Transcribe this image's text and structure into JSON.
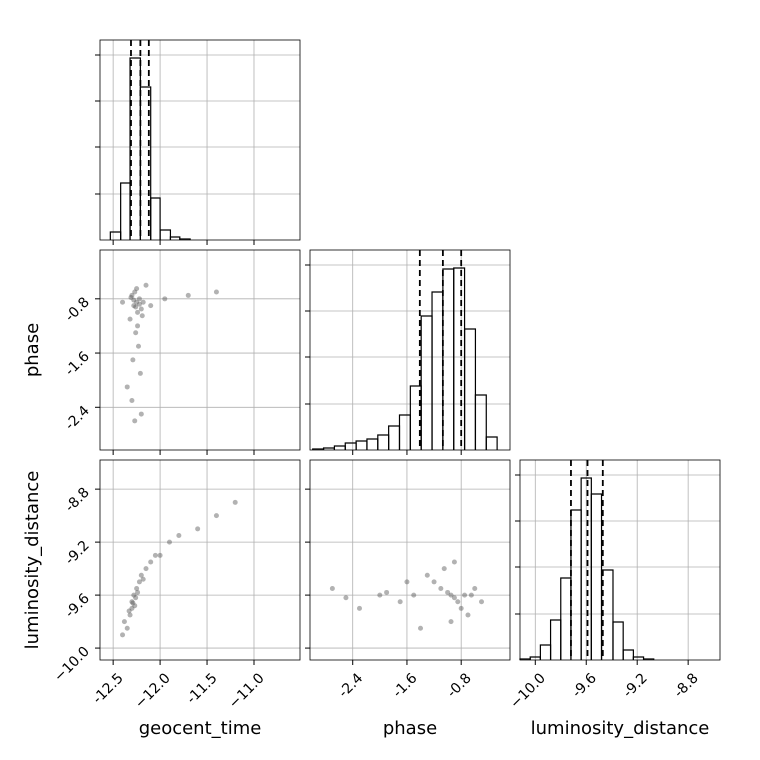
{
  "chart_data": [
    {
      "type": "histogram",
      "xlim": [
        -12.64,
        -10.51
      ],
      "ylim": [
        0,
        200
      ],
      "xticks": [
        -12.5,
        {
          "value": -12,
          "label": "−12.0"
        },
        -11.5,
        {
          "value": -11,
          "label": "−11.0"
        }
      ],
      "yticks": [
        46,
        93,
        139,
        185
      ],
      "bins": [
        -12.53,
        -12.42,
        -12.32,
        -12.21,
        -12.1,
        -12.0,
        -11.89,
        -11.79,
        -11.68
      ],
      "values": [
        8,
        57,
        182,
        153,
        42,
        10,
        3,
        1
      ],
      "quantiles": [
        -12.31,
        -12.21,
        -12.12
      ],
      "grid": true,
      "color": "#000000"
    },
    {
      "type": "scatter",
      "xlim": [
        -12.64,
        -10.51
      ],
      "ylim": [
        -3.03,
        -0.08
      ],
      "xticks": [
        -12.5,
        {
          "value": -12,
          "label": "−12.0"
        },
        -11.5,
        {
          "value": -11,
          "label": "−11.0"
        }
      ],
      "yticks": [
        -2.4,
        -1.6,
        -0.8
      ],
      "ylabel": "phase",
      "grid": true,
      "color": "#555555",
      "x": [
        -12.25,
        -12.22,
        -12.28,
        -12.3,
        -12.2,
        -12.24,
        -12.27,
        -12.18,
        -12.32,
        -12.26,
        -12.23,
        -12.29,
        -12.21,
        -12.35,
        -12.15,
        -12.25,
        -12.3,
        -12.2,
        -12.27,
        -12.24,
        -12.1,
        -11.95,
        -11.7,
        -11.4,
        -12.4,
        -12.22,
        -12.28,
        -12.26,
        -12.19,
        -12.31
      ],
      "y": [
        -0.85,
        -0.8,
        -0.9,
        -0.75,
        -0.95,
        -1.0,
        -0.7,
        -0.85,
        -1.1,
        -1.3,
        -1.5,
        -1.7,
        -1.9,
        -2.1,
        -0.6,
        -0.65,
        -2.3,
        -2.5,
        -2.6,
        -1.2,
        -0.9,
        -0.8,
        -0.75,
        -0.7,
        -0.85,
        -0.88,
        -0.82,
        -0.92,
        -1.05,
        -0.78
      ]
    },
    {
      "type": "histogram",
      "xlim": [
        -3.03,
        -0.08
      ],
      "ylim": [
        0,
        200
      ],
      "xticks": [
        -2.4,
        -1.6,
        -0.8
      ],
      "yticks": [
        46,
        93,
        139,
        185
      ],
      "bins": [
        -2.99,
        -2.83,
        -2.67,
        -2.51,
        -2.35,
        -2.19,
        -2.03,
        -1.87,
        -1.71,
        -1.55,
        -1.39,
        -1.23,
        -1.07,
        -0.91,
        -0.75,
        -0.59,
        -0.43,
        -0.27
      ],
      "values": [
        1,
        2,
        4,
        7,
        9,
        11,
        15,
        24,
        35,
        64,
        134,
        158,
        181,
        182,
        121,
        55,
        13
      ],
      "quantiles": [
        -1.41,
        -1.07,
        -0.8
      ],
      "grid": true,
      "color": "#000000"
    },
    {
      "type": "scatter",
      "xlim": [
        -12.64,
        -10.51
      ],
      "ylim": [
        -10.09,
        -8.58
      ],
      "xticks": [
        -12.5,
        {
          "value": -12,
          "label": "−12.0"
        },
        -11.5,
        {
          "value": -11,
          "label": "−11.0"
        }
      ],
      "yticks": [
        {
          "value": -10,
          "label": "−10.0"
        },
        -9.6,
        -9.2,
        -8.8
      ],
      "xlabel": "geocent_time",
      "ylabel": "luminosity_distance",
      "grid": true,
      "color": "#555555",
      "x": [
        -12.3,
        -12.28,
        -12.25,
        -12.32,
        -12.22,
        -12.35,
        -12.27,
        -12.2,
        -12.15,
        -12.1,
        -12.05,
        -12.0,
        -11.9,
        -11.8,
        -11.6,
        -11.4,
        -11.2,
        -12.4,
        -12.38,
        -12.3,
        -12.26,
        -12.24,
        -12.33,
        -12.18,
        -12.29
      ],
      "y": [
        -9.65,
        -9.6,
        -9.55,
        -9.75,
        -9.5,
        -9.85,
        -9.68,
        -9.45,
        -9.4,
        -9.35,
        -9.3,
        -9.3,
        -9.2,
        -9.15,
        -9.1,
        -9.0,
        -8.9,
        -9.9,
        -9.8,
        -9.7,
        -9.62,
        -9.58,
        -9.72,
        -9.48,
        -9.66
      ]
    },
    {
      "type": "scatter",
      "xlim": [
        -3.03,
        -0.08
      ],
      "ylim": [
        -10.09,
        -8.58
      ],
      "xticks": [
        -2.4,
        -1.6,
        -0.8
      ],
      "yticks": [
        {
          "value": -10,
          "label": "−10.0"
        },
        -9.6,
        -9.2,
        -8.8
      ],
      "xlabel": "phase",
      "grid": true,
      "color": "#555555",
      "x": [
        -0.95,
        -0.9,
        -1.0,
        -0.85,
        -1.1,
        -0.8,
        -1.2,
        -0.75,
        -1.3,
        -0.7,
        -1.5,
        -0.6,
        -1.7,
        -2.0,
        -2.3,
        -2.7,
        -0.5,
        -0.95,
        -1.05,
        -0.9,
        -1.4,
        -1.6,
        -0.65,
        -2.5,
        -1.9
      ],
      "y": [
        -9.6,
        -9.62,
        -9.58,
        -9.65,
        -9.55,
        -9.7,
        -9.5,
        -9.6,
        -9.45,
        -9.75,
        -9.6,
        -9.55,
        -9.65,
        -9.6,
        -9.7,
        -9.55,
        -9.65,
        -9.8,
        -9.4,
        -9.35,
        -9.85,
        -9.5,
        -9.6,
        -9.62,
        -9.58
      ]
    },
    {
      "type": "histogram",
      "xlim": [
        -10.12,
        -8.55
      ],
      "ylim": [
        0,
        200
      ],
      "xticks": [
        {
          "value": -10,
          "label": "−10.0"
        },
        -9.6,
        -9.2,
        -8.8
      ],
      "yticks": [
        46,
        93,
        139,
        185
      ],
      "xlabel": "luminosity_distance",
      "bins": [
        -10.12,
        -10.04,
        -9.96,
        -9.88,
        -9.8,
        -9.72,
        -9.64,
        -9.56,
        -9.48,
        -9.39,
        -9.31,
        -9.23,
        -9.15,
        -9.07
      ],
      "values": [
        1,
        3,
        15,
        40,
        82,
        150,
        182,
        166,
        90,
        38,
        10,
        3,
        1
      ],
      "quantiles": [
        -9.72,
        -9.59,
        -9.47
      ],
      "grid": true,
      "color": "#000000"
    }
  ]
}
